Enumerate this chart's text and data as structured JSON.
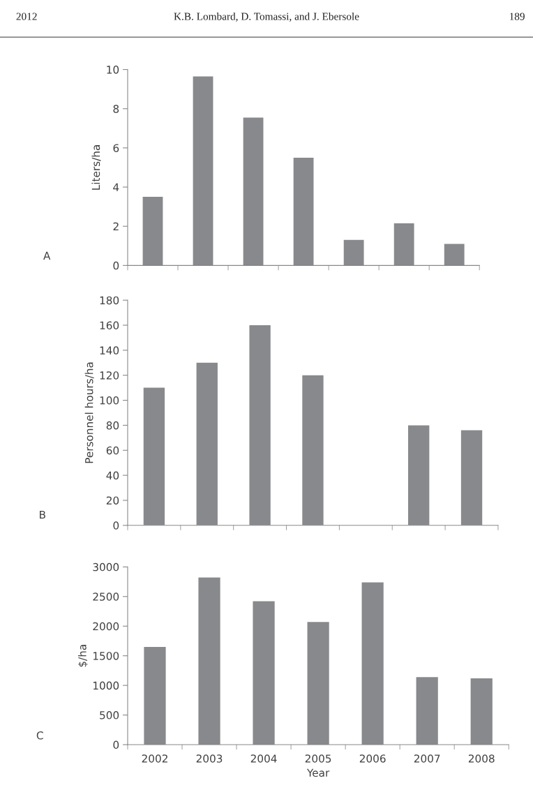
{
  "chart_data": [
    {
      "type": "bar",
      "ylabel": "Liters/ha",
      "annotations": [
        "2012",
        "K.B. Lombard, D. Tomassi, and J. Ebersole",
        "189",
        "A"
      ],
      "categories": [
        "2002",
        "2003",
        "2004",
        "2005",
        "2006",
        "2007",
        "2008"
      ],
      "values": [
        3.5,
        9.65,
        7.55,
        5.5,
        1.3,
        2.15,
        1.1
      ],
      "color": "#87898c",
      "ylim": [
        0,
        10
      ],
      "yticks": [
        0,
        2,
        4,
        6,
        8,
        10
      ],
      "tick_labels": "y"
    },
    {
      "type": "bar",
      "ylabel": "Personnel hours/ha",
      "annotations": [
        "B"
      ],
      "categories": [
        "2002",
        "2003",
        "2004",
        "2005",
        "2006",
        "2007",
        "2008"
      ],
      "values": [
        110,
        130,
        160,
        120,
        null,
        80,
        76
      ],
      "color": "#87898c",
      "ylim": [
        0,
        180
      ],
      "yticks": [
        0,
        20,
        40,
        60,
        80,
        100,
        120,
        140,
        160,
        180
      ],
      "tick_labels": "y"
    },
    {
      "type": "bar",
      "ylabel": "$/ha",
      "xlabel": "Year",
      "annotations": [
        "C"
      ],
      "categories": [
        "2002",
        "2003",
        "2004",
        "2005",
        "2006",
        "2007",
        "2008"
      ],
      "values": [
        1650,
        2820,
        2420,
        2070,
        2740,
        1140,
        1120
      ],
      "color": "#87898c",
      "ylim": [
        0,
        3000
      ],
      "yticks": [
        0,
        500,
        1000,
        1500,
        2000,
        2500,
        3000
      ]
    }
  ]
}
